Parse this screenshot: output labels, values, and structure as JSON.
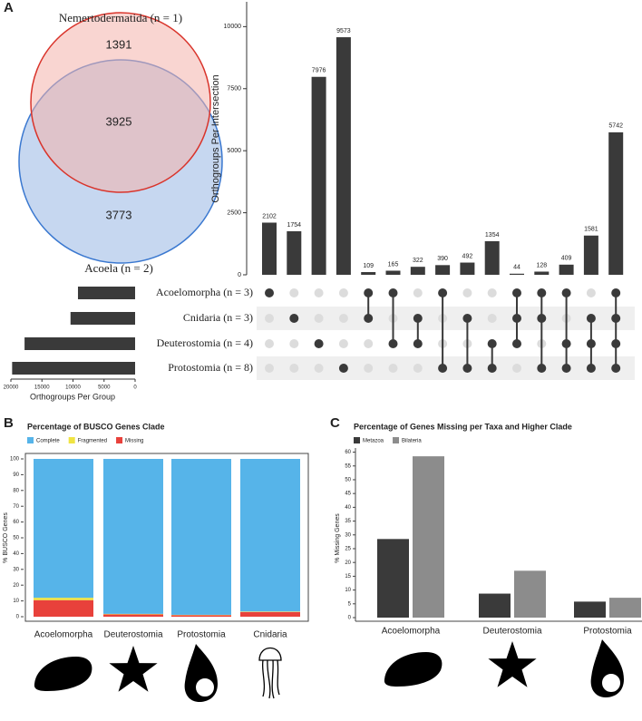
{
  "chart_data": [
    {
      "type": "venn",
      "panel": "A",
      "sets": [
        {
          "name": "Nemertodermatida (n = 1)",
          "color": "#d9342b",
          "fill": "#f4b3ac"
        },
        {
          "name": "Acoela (n = 2)",
          "color": "#3a78d0",
          "fill": "#c6d7f0"
        }
      ],
      "values": [
        1391,
        3925,
        3773
      ]
    },
    {
      "type": "upset",
      "ylabel": "Orthogroups Per Intersection",
      "color": "#3a3a3a",
      "values": [
        2102,
        1754,
        7976,
        9573,
        109,
        165,
        322,
        390,
        492,
        1354,
        44,
        128,
        409,
        1581,
        5742
      ],
      "intersections": [
        [
          0
        ],
        [
          1
        ],
        [
          2
        ],
        [
          3
        ],
        [
          0,
          1
        ],
        [
          0,
          2
        ],
        [
          1,
          2
        ],
        [
          0,
          3
        ],
        [
          1,
          3
        ],
        [
          2,
          3
        ],
        [
          0,
          1,
          2
        ],
        [
          0,
          1,
          3
        ],
        [
          0,
          2,
          3
        ],
        [
          1,
          2,
          3
        ],
        [
          0,
          1,
          2,
          3
        ]
      ],
      "ylim": [
        0,
        11000
      ],
      "yticks": [
        0,
        2500,
        5000,
        7500,
        10000
      ],
      "sets": [
        "Acoelomorpha (n = 3)",
        "Cnidaria (n = 3)",
        "Deuterostomia (n = 4)",
        "Protostomia (n = 8)"
      ],
      "set_values": [
        9200,
        10400,
        17800,
        19800
      ],
      "set_xlabel": "Orthogroups Per Group",
      "set_xlim": [
        0,
        20000
      ],
      "set_xticks": [
        20000,
        15000,
        10000,
        5000,
        0
      ]
    },
    {
      "type": "stacked_bar",
      "panel": "B",
      "title": "Percentage of BUSCO Genes Clade",
      "ylabel": "% BUSCO Genes",
      "categories": [
        "Acoelomorpha",
        "Deuterostomia",
        "Protostomia",
        "Cnidaria"
      ],
      "series": [
        {
          "name": "Complete",
          "color": "#56b4e9",
          "values": [
            88,
            98.2,
            98.8,
            96.7
          ]
        },
        {
          "name": "Fragmented",
          "color": "#f0e442",
          "values": [
            1.5,
            0.3,
            0.2,
            0.3
          ]
        },
        {
          "name": "Missing",
          "color": "#e8413b",
          "values": [
            10.5,
            1.5,
            1,
            3
          ]
        }
      ],
      "ylim": [
        0,
        100
      ],
      "yticks": [
        0,
        10,
        20,
        30,
        40,
        50,
        60,
        70,
        80,
        90,
        100
      ]
    },
    {
      "type": "grouped_bar",
      "panel": "C",
      "title": "Percentage of Genes Missing per Taxa and Higher Clade",
      "ylabel": "% Missing Genes",
      "categories": [
        "Acoelomorpha",
        "Deuterostomia",
        "Protostomia"
      ],
      "series": [
        {
          "name": "Metazoa",
          "color": "#3a3a3a",
          "values": [
            28.5,
            8.7,
            5.8
          ]
        },
        {
          "name": "Bilateria",
          "color": "#8c8c8c",
          "values": [
            58.5,
            17,
            7.2
          ]
        }
      ],
      "ylim": [
        0,
        61.5
      ],
      "yticks": [
        0,
        5,
        10,
        15,
        20,
        25,
        30,
        35,
        40,
        45,
        50,
        55,
        60
      ]
    }
  ]
}
